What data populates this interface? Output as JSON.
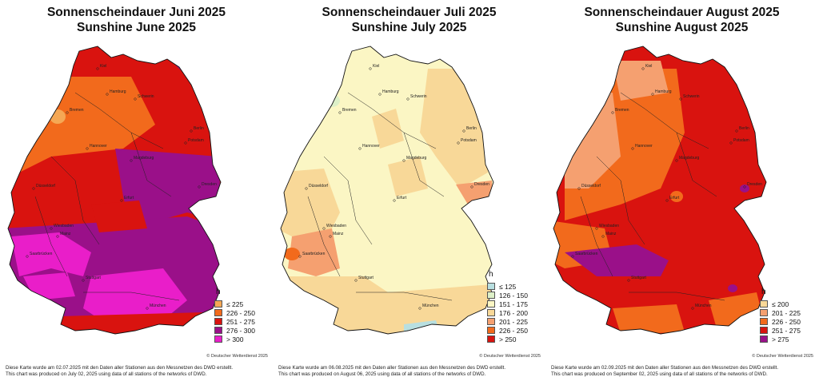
{
  "panels": [
    {
      "title_de": "Sonnenscheindauer Juni 2025",
      "title_en": "Sunshine June 2025",
      "legend_unit": "h",
      "legend": [
        {
          "label": "≤  225",
          "color": "#f5a855"
        },
        {
          "label": "226 - 250",
          "color": "#f26a1c"
        },
        {
          "label": "251 - 275",
          "color": "#d9130f"
        },
        {
          "label": "276 - 300",
          "color": "#9a1089"
        },
        {
          "label": "> 300",
          "color": "#e91ec9"
        }
      ],
      "copyright": "© Deutscher Wetterdienst 2025",
      "note_de": "Diese Karte wurde am 02.07.2025 mit den Daten aller Stationen aus den Messnetzen des DWD erstellt.",
      "note_en": "This chart was produced on July 02, 2025 using data of all stations of the networks of DWD."
    },
    {
      "title_de": "Sonnenscheindauer Juli 2025",
      "title_en": "Sunshine July 2025",
      "legend_unit": "h",
      "legend": [
        {
          "label": "≤  125",
          "color": "#b8dfe0"
        },
        {
          "label": "126 - 150",
          "color": "#ddf0c8"
        },
        {
          "label": "151 - 175",
          "color": "#fbf6c4"
        },
        {
          "label": "176 - 200",
          "color": "#f8d898"
        },
        {
          "label": "201 - 225",
          "color": "#f5a070"
        },
        {
          "label": "226 - 250",
          "color": "#f26a1c"
        },
        {
          "label": "> 250",
          "color": "#d9130f"
        }
      ],
      "copyright": "© Deutscher Wetterdienst 2025",
      "note_de": "Diese Karte wurde am 06.08.2025 mit den Daten aller Stationen aus den Messnetzen des DWD erstellt.",
      "note_en": "This chart was produced on August 06, 2025 using data of all stations of the networks of DWD."
    },
    {
      "title_de": "Sonnenscheindauer August 2025",
      "title_en": "Sunshine August 2025",
      "legend_unit": "h",
      "legend": [
        {
          "label": "≤  200",
          "color": "#f8d898"
        },
        {
          "label": "201 - 225",
          "color": "#f5a070"
        },
        {
          "label": "226 - 250",
          "color": "#f26a1c"
        },
        {
          "label": "251 - 275",
          "color": "#d9130f"
        },
        {
          "label": "> 275",
          "color": "#9a1089"
        }
      ],
      "copyright": "© Deutscher Wetterdienst 2025",
      "note_de": "Diese Karte wurde am 02.09.2025 mit den Daten aller Stationen aus den Messnetzen des DWD erstellt.",
      "note_en": "This chart was produced on September 02, 2025 using data of all stations of the networks of DWD."
    }
  ],
  "cities": [
    "Kiel",
    "Hamburg",
    "Schwerin",
    "Bremen",
    "Berlin",
    "Hannover",
    "Potsdam",
    "Magdeburg",
    "Düsseldorf",
    "Dresden",
    "Erfurt",
    "Wiesbaden",
    "Mainz",
    "Saarbrücken",
    "Stuttgart",
    "München"
  ]
}
